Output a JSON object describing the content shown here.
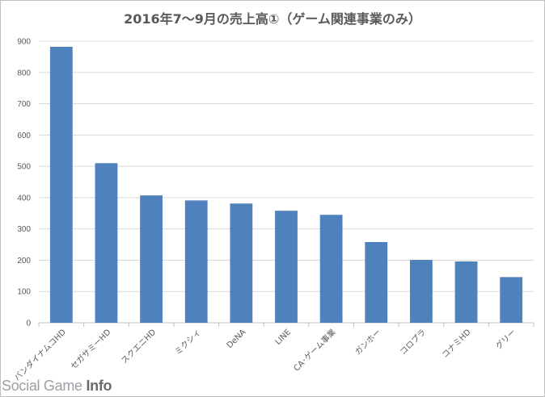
{
  "chart_data": {
    "type": "bar",
    "title": "2016年7〜9月の売上高①（ゲーム関連事業のみ）",
    "categories": [
      "バンダイナムコHD",
      "セガサミーHD",
      "スクエニHD",
      "ミクシィ",
      "DeNA",
      "LINE",
      "CA･ゲーム事業",
      "ガンホー",
      "コロプラ",
      "コナミHD",
      "グリー"
    ],
    "values": [
      882,
      510,
      407,
      391,
      381,
      358,
      345,
      258,
      201,
      196,
      146
    ],
    "ylim": [
      0,
      900
    ],
    "yticks": [
      0,
      100,
      200,
      300,
      400,
      500,
      600,
      700,
      800,
      900
    ],
    "grid": true,
    "bar_color": "#4f81bd",
    "xlabel": "",
    "ylabel": ""
  },
  "watermark": {
    "prefix": "Social Game ",
    "accent": "Info"
  }
}
